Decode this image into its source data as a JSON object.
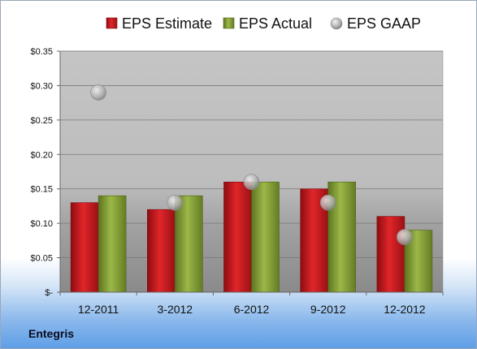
{
  "company": "Entegris",
  "colors": {
    "estimate": "#c8171b",
    "actual": "#8aa438",
    "gaap": "#a8a8a8"
  },
  "chart_data": {
    "type": "bar",
    "categories": [
      "12-2011",
      "3-2012",
      "6-2012",
      "9-2012",
      "12-2012"
    ],
    "series": [
      {
        "name": "EPS Estimate",
        "values": [
          0.13,
          0.12,
          0.16,
          0.15,
          0.11
        ]
      },
      {
        "name": "EPS Actual",
        "values": [
          0.14,
          0.14,
          0.16,
          0.16,
          0.09
        ]
      },
      {
        "name": "EPS GAAP",
        "values": [
          0.29,
          0.13,
          0.16,
          0.13,
          0.08
        ],
        "style": "marker"
      }
    ],
    "yticks": [
      0,
      0.05,
      0.1,
      0.15,
      0.2,
      0.25,
      0.3,
      0.35
    ],
    "ytick_labels": [
      "$-",
      "$0.05",
      "$0.10",
      "$0.15",
      "$0.20",
      "$0.25",
      "$0.30",
      "$0.35"
    ],
    "ylim": [
      0,
      0.35
    ],
    "grid": true,
    "legend": "top"
  }
}
